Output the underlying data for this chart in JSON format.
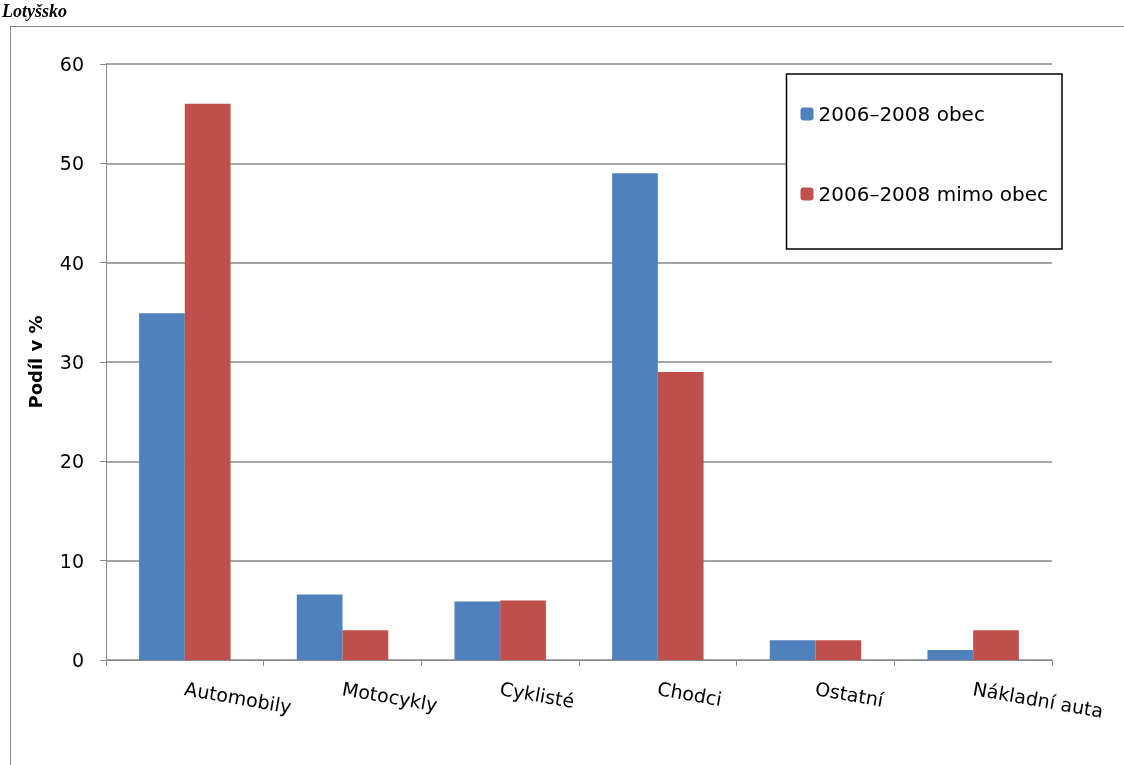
{
  "chart_data": {
    "type": "bar",
    "title": "Lotyšsko",
    "ylabel": "Podíl v %",
    "categories": [
      "Automobily",
      "Motocykly",
      "Cyklisté",
      "Chodci",
      "Ostatní",
      "Nákladní auta"
    ],
    "series": [
      {
        "name": "2006–2008 obec",
        "color": "#4f81bd",
        "values": [
          34.9,
          6.6,
          5.9,
          49,
          2,
          1
        ]
      },
      {
        "name": "2006–2008 mimo obec",
        "color": "#c0504d",
        "values": [
          56,
          3,
          6,
          29,
          2,
          3
        ]
      }
    ],
    "ylim": [
      0,
      60
    ],
    "yticks": [
      0,
      10,
      20,
      30,
      40,
      50,
      60
    ],
    "grid": "y",
    "legend": "top right"
  }
}
